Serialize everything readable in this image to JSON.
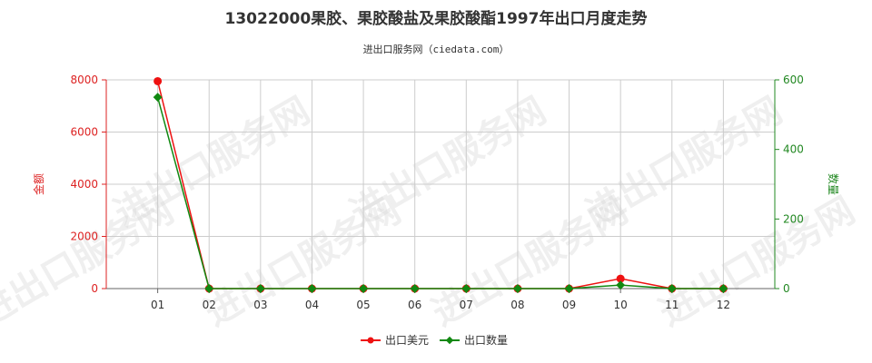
{
  "chart_data": {
    "type": "line",
    "title": "13022000果胶、果胶酸盐及果胶酸酯1997年出口月度走势",
    "subtitle": "进出口服务网（ciedata.com）",
    "categories": [
      "01",
      "02",
      "03",
      "04",
      "05",
      "06",
      "07",
      "08",
      "09",
      "10",
      "11",
      "12"
    ],
    "y_left": {
      "label": "金额",
      "ylim": [
        0,
        8000
      ],
      "ticks": [
        0,
        2000,
        4000,
        6000,
        8000
      ],
      "color": "#dd2222"
    },
    "y_right": {
      "label": "数量",
      "ylim": [
        0,
        600
      ],
      "ticks": [
        0,
        200,
        400,
        600
      ],
      "color": "#228822"
    },
    "series": [
      {
        "name": "出口美元",
        "axis": "left",
        "color": "#ee1111",
        "values": [
          7950,
          0,
          0,
          0,
          0,
          0,
          0,
          0,
          0,
          380,
          0,
          0
        ]
      },
      {
        "name": "出口数量",
        "axis": "right",
        "color": "#118811",
        "values": [
          550,
          0,
          0,
          0,
          0,
          0,
          0,
          0,
          0,
          10,
          0,
          0
        ]
      }
    ],
    "grid": true,
    "legend": "bottom",
    "watermark": "进出口服务网"
  }
}
